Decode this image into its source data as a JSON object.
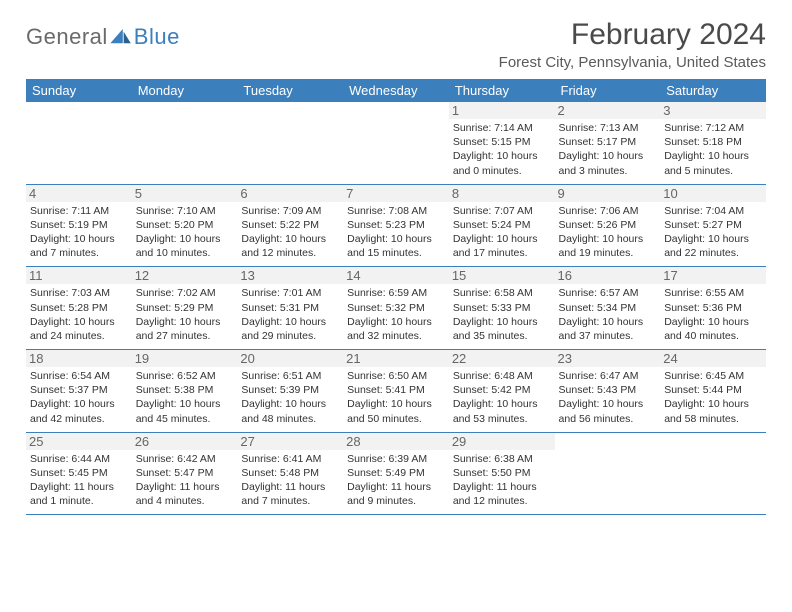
{
  "logo": {
    "text1": "General",
    "text2": "Blue"
  },
  "title": "February 2024",
  "location": "Forest City, Pennsylvania, United States",
  "colors": {
    "accent": "#3b7fbd",
    "headerText": "#ffffff",
    "dayBg": "#f2f2f2",
    "text": "#333333"
  },
  "weekdays": [
    "Sunday",
    "Monday",
    "Tuesday",
    "Wednesday",
    "Thursday",
    "Friday",
    "Saturday"
  ],
  "weeks": [
    [
      null,
      null,
      null,
      null,
      {
        "n": "1",
        "sr": "Sunrise: 7:14 AM",
        "ss": "Sunset: 5:15 PM",
        "dl1": "Daylight: 10 hours",
        "dl2": "and 0 minutes."
      },
      {
        "n": "2",
        "sr": "Sunrise: 7:13 AM",
        "ss": "Sunset: 5:17 PM",
        "dl1": "Daylight: 10 hours",
        "dl2": "and 3 minutes."
      },
      {
        "n": "3",
        "sr": "Sunrise: 7:12 AM",
        "ss": "Sunset: 5:18 PM",
        "dl1": "Daylight: 10 hours",
        "dl2": "and 5 minutes."
      }
    ],
    [
      {
        "n": "4",
        "sr": "Sunrise: 7:11 AM",
        "ss": "Sunset: 5:19 PM",
        "dl1": "Daylight: 10 hours",
        "dl2": "and 7 minutes."
      },
      {
        "n": "5",
        "sr": "Sunrise: 7:10 AM",
        "ss": "Sunset: 5:20 PM",
        "dl1": "Daylight: 10 hours",
        "dl2": "and 10 minutes."
      },
      {
        "n": "6",
        "sr": "Sunrise: 7:09 AM",
        "ss": "Sunset: 5:22 PM",
        "dl1": "Daylight: 10 hours",
        "dl2": "and 12 minutes."
      },
      {
        "n": "7",
        "sr": "Sunrise: 7:08 AM",
        "ss": "Sunset: 5:23 PM",
        "dl1": "Daylight: 10 hours",
        "dl2": "and 15 minutes."
      },
      {
        "n": "8",
        "sr": "Sunrise: 7:07 AM",
        "ss": "Sunset: 5:24 PM",
        "dl1": "Daylight: 10 hours",
        "dl2": "and 17 minutes."
      },
      {
        "n": "9",
        "sr": "Sunrise: 7:06 AM",
        "ss": "Sunset: 5:26 PM",
        "dl1": "Daylight: 10 hours",
        "dl2": "and 19 minutes."
      },
      {
        "n": "10",
        "sr": "Sunrise: 7:04 AM",
        "ss": "Sunset: 5:27 PM",
        "dl1": "Daylight: 10 hours",
        "dl2": "and 22 minutes."
      }
    ],
    [
      {
        "n": "11",
        "sr": "Sunrise: 7:03 AM",
        "ss": "Sunset: 5:28 PM",
        "dl1": "Daylight: 10 hours",
        "dl2": "and 24 minutes."
      },
      {
        "n": "12",
        "sr": "Sunrise: 7:02 AM",
        "ss": "Sunset: 5:29 PM",
        "dl1": "Daylight: 10 hours",
        "dl2": "and 27 minutes."
      },
      {
        "n": "13",
        "sr": "Sunrise: 7:01 AM",
        "ss": "Sunset: 5:31 PM",
        "dl1": "Daylight: 10 hours",
        "dl2": "and 29 minutes."
      },
      {
        "n": "14",
        "sr": "Sunrise: 6:59 AM",
        "ss": "Sunset: 5:32 PM",
        "dl1": "Daylight: 10 hours",
        "dl2": "and 32 minutes."
      },
      {
        "n": "15",
        "sr": "Sunrise: 6:58 AM",
        "ss": "Sunset: 5:33 PM",
        "dl1": "Daylight: 10 hours",
        "dl2": "and 35 minutes."
      },
      {
        "n": "16",
        "sr": "Sunrise: 6:57 AM",
        "ss": "Sunset: 5:34 PM",
        "dl1": "Daylight: 10 hours",
        "dl2": "and 37 minutes."
      },
      {
        "n": "17",
        "sr": "Sunrise: 6:55 AM",
        "ss": "Sunset: 5:36 PM",
        "dl1": "Daylight: 10 hours",
        "dl2": "and 40 minutes."
      }
    ],
    [
      {
        "n": "18",
        "sr": "Sunrise: 6:54 AM",
        "ss": "Sunset: 5:37 PM",
        "dl1": "Daylight: 10 hours",
        "dl2": "and 42 minutes."
      },
      {
        "n": "19",
        "sr": "Sunrise: 6:52 AM",
        "ss": "Sunset: 5:38 PM",
        "dl1": "Daylight: 10 hours",
        "dl2": "and 45 minutes."
      },
      {
        "n": "20",
        "sr": "Sunrise: 6:51 AM",
        "ss": "Sunset: 5:39 PM",
        "dl1": "Daylight: 10 hours",
        "dl2": "and 48 minutes."
      },
      {
        "n": "21",
        "sr": "Sunrise: 6:50 AM",
        "ss": "Sunset: 5:41 PM",
        "dl1": "Daylight: 10 hours",
        "dl2": "and 50 minutes."
      },
      {
        "n": "22",
        "sr": "Sunrise: 6:48 AM",
        "ss": "Sunset: 5:42 PM",
        "dl1": "Daylight: 10 hours",
        "dl2": "and 53 minutes."
      },
      {
        "n": "23",
        "sr": "Sunrise: 6:47 AM",
        "ss": "Sunset: 5:43 PM",
        "dl1": "Daylight: 10 hours",
        "dl2": "and 56 minutes."
      },
      {
        "n": "24",
        "sr": "Sunrise: 6:45 AM",
        "ss": "Sunset: 5:44 PM",
        "dl1": "Daylight: 10 hours",
        "dl2": "and 58 minutes."
      }
    ],
    [
      {
        "n": "25",
        "sr": "Sunrise: 6:44 AM",
        "ss": "Sunset: 5:45 PM",
        "dl1": "Daylight: 11 hours",
        "dl2": "and 1 minute."
      },
      {
        "n": "26",
        "sr": "Sunrise: 6:42 AM",
        "ss": "Sunset: 5:47 PM",
        "dl1": "Daylight: 11 hours",
        "dl2": "and 4 minutes."
      },
      {
        "n": "27",
        "sr": "Sunrise: 6:41 AM",
        "ss": "Sunset: 5:48 PM",
        "dl1": "Daylight: 11 hours",
        "dl2": "and 7 minutes."
      },
      {
        "n": "28",
        "sr": "Sunrise: 6:39 AM",
        "ss": "Sunset: 5:49 PM",
        "dl1": "Daylight: 11 hours",
        "dl2": "and 9 minutes."
      },
      {
        "n": "29",
        "sr": "Sunrise: 6:38 AM",
        "ss": "Sunset: 5:50 PM",
        "dl1": "Daylight: 11 hours",
        "dl2": "and 12 minutes."
      },
      null,
      null
    ]
  ]
}
